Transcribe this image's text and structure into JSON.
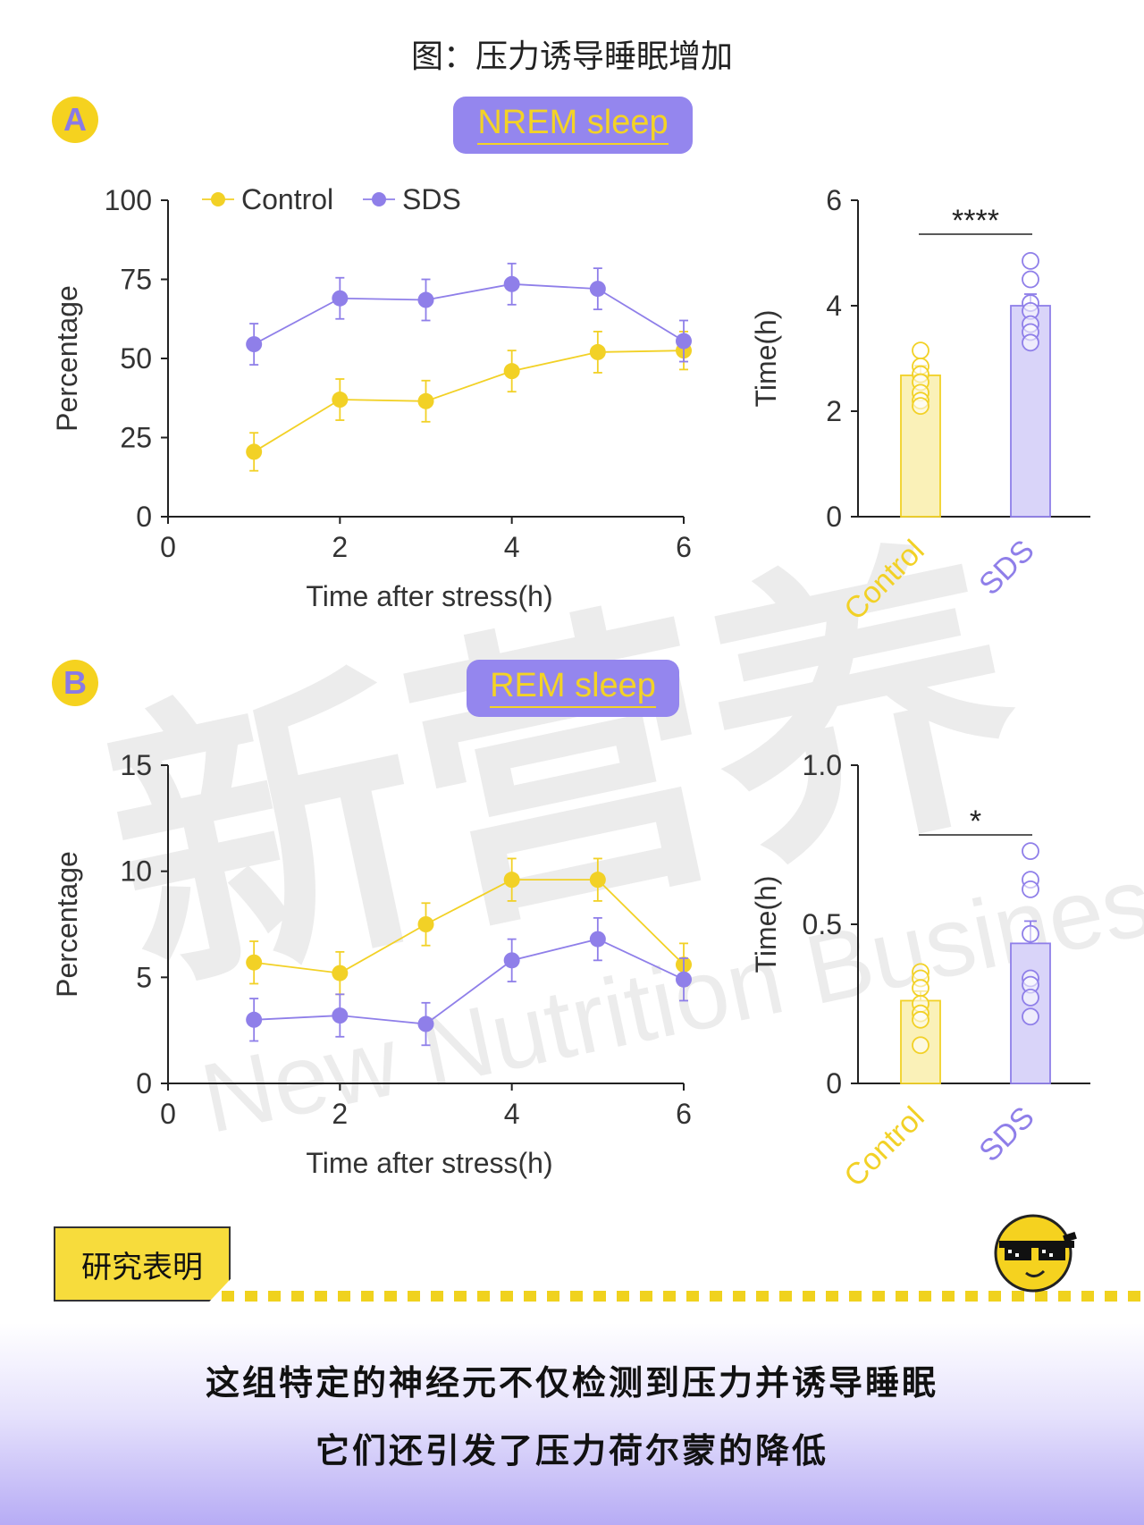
{
  "figure_title": "图：压力诱导睡眠增加",
  "panels": {
    "a": {
      "letter": "A",
      "pill": "NREM sleep"
    },
    "b": {
      "letter": "B",
      "pill": "REM sleep"
    }
  },
  "colors": {
    "control": "#f2d126",
    "sds": "#8f7fe9",
    "pill_bg": "#9486ee",
    "badge": "#f5d21f"
  },
  "chart_data": [
    {
      "type": "line",
      "panel": "A",
      "ylabel": "Percentage",
      "xlabel": "Time after stress(h)",
      "xlim": [
        0,
        6
      ],
      "ylim": [
        0,
        100
      ],
      "xticks": [
        "0",
        "2",
        "4",
        "6"
      ],
      "yticks": [
        "0",
        "25",
        "50",
        "75",
        "100"
      ],
      "legend_position": "top",
      "series": [
        {
          "name": "Control",
          "x": [
            1,
            2,
            3,
            4,
            5,
            6
          ],
          "y": [
            20.5,
            37,
            36.5,
            46,
            52,
            52.5
          ],
          "err": [
            6,
            6.5,
            6.5,
            6.5,
            6.5,
            6
          ]
        },
        {
          "name": "SDS",
          "x": [
            1,
            2,
            3,
            4,
            5,
            6
          ],
          "y": [
            54.5,
            69,
            68.5,
            73.5,
            72,
            55.5
          ],
          "err": [
            6.5,
            6.5,
            6.5,
            6.5,
            6.5,
            6.5
          ]
        }
      ]
    },
    {
      "type": "bar",
      "panel": "A",
      "ylabel": "Time(h)",
      "categories": [
        "Control",
        "SDS"
      ],
      "values": [
        2.68,
        4.0
      ],
      "err": [
        0.18,
        0.22
      ],
      "points": [
        [
          3.15,
          2.85,
          2.7,
          2.55,
          2.35,
          2.2,
          2.1
        ],
        [
          4.85,
          4.5,
          4.05,
          3.9,
          3.65,
          3.5,
          3.3
        ]
      ],
      "ylim": [
        0,
        6
      ],
      "yticks": [
        "0",
        "2",
        "4",
        "6"
      ],
      "significance": "****"
    },
    {
      "type": "line",
      "panel": "B",
      "ylabel": "Percentage",
      "xlabel": "Time after stress(h)",
      "xlim": [
        0,
        6
      ],
      "ylim": [
        0,
        15
      ],
      "xticks": [
        "0",
        "2",
        "4",
        "6"
      ],
      "yticks": [
        "0",
        "5",
        "10",
        "15"
      ],
      "series": [
        {
          "name": "Control",
          "x": [
            1,
            2,
            3,
            4,
            5,
            6
          ],
          "y": [
            5.7,
            5.2,
            7.5,
            9.6,
            9.6,
            5.6
          ],
          "err": [
            1.0,
            1.0,
            1.0,
            1.0,
            1.0,
            1.0
          ]
        },
        {
          "name": "SDS",
          "x": [
            1,
            2,
            3,
            4,
            5,
            6
          ],
          "y": [
            3.0,
            3.2,
            2.8,
            5.8,
            6.8,
            4.9
          ],
          "err": [
            1.0,
            1.0,
            1.0,
            1.0,
            1.0,
            1.0
          ]
        }
      ]
    },
    {
      "type": "bar",
      "panel": "B",
      "ylabel": "Time(h)",
      "categories": [
        "Control",
        "SDS"
      ],
      "values": [
        0.26,
        0.44
      ],
      "err": [
        0.03,
        0.07
      ],
      "points": [
        [
          0.35,
          0.33,
          0.3,
          0.25,
          0.22,
          0.2,
          0.12
        ],
        [
          0.73,
          0.64,
          0.61,
          0.47,
          0.33,
          0.31,
          0.27,
          0.21
        ]
      ],
      "ylim": [
        0,
        1.0
      ],
      "yticks": [
        "0",
        "0.5",
        "1.0"
      ],
      "significance": "*"
    }
  ],
  "watermark": {
    "chars": "新营养",
    "text": "New Nutrition Business",
    "mark": "®"
  },
  "footer": {
    "tag": "研究表明",
    "emoji": "cool-face-icon",
    "line1": "这组特定的神经元不仅检测到压力并诱导睡眠",
    "line2": "它们还引发了压力荷尔蒙的降低"
  }
}
